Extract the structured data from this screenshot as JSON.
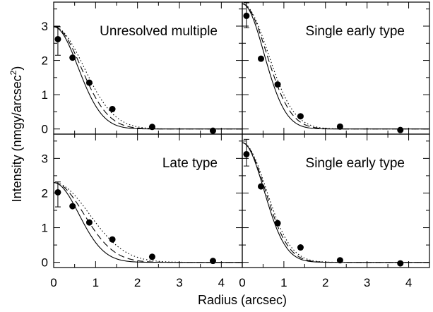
{
  "chart_data": {
    "type": "scatter",
    "xlabel": "Radius (arcsec)",
    "ylabel_main": "Intensity (nmgy/arcsec",
    "ylabel_sup": "2",
    "ylabel_close": ")",
    "xlim": [
      0,
      4.5
    ],
    "ylim": [
      -0.15,
      3.7
    ],
    "xticks": [
      0,
      1,
      2,
      3,
      4
    ],
    "yticks": [
      0,
      1,
      2,
      3
    ],
    "grid": false,
    "panels": [
      {
        "label": "Unresolved multiple",
        "points": [
          [
            0.1,
            2.62
          ],
          [
            0.45,
            2.08
          ],
          [
            0.85,
            1.35
          ],
          [
            1.4,
            0.58
          ],
          [
            2.35,
            0.06
          ],
          [
            3.8,
            -0.05
          ]
        ],
        "errorbar": {
          "x": 0.1,
          "y": 2.62,
          "low": 2.15,
          "high": 2.98
        },
        "peak": 2.98,
        "curves": [
          {
            "style": "solid",
            "sigma": 0.58
          },
          {
            "style": "dashed",
            "sigma": 0.65
          },
          {
            "style": "dotted",
            "sigma": 0.72
          }
        ]
      },
      {
        "label": "Single early type",
        "points": [
          [
            0.1,
            3.3
          ],
          [
            0.45,
            2.05
          ],
          [
            0.85,
            1.3
          ],
          [
            1.4,
            0.37
          ],
          [
            2.35,
            0.07
          ],
          [
            3.8,
            -0.03
          ]
        ],
        "errorbar": {
          "x": 0.1,
          "y": 3.3,
          "low": 2.95,
          "high": 3.68
        },
        "peak": 3.65,
        "curves": [
          {
            "style": "solid",
            "sigma": 0.52
          },
          {
            "style": "dashed",
            "sigma": 0.58
          },
          {
            "style": "dotted",
            "sigma": 0.62
          }
        ]
      },
      {
        "label": "Late type",
        "points": [
          [
            0.1,
            2.02
          ],
          [
            0.45,
            1.62
          ],
          [
            0.85,
            1.15
          ],
          [
            1.4,
            0.66
          ],
          [
            2.35,
            0.16
          ],
          [
            3.8,
            0.04
          ]
        ],
        "errorbar": {
          "x": 0.1,
          "y": 2.02,
          "low": 1.6,
          "high": 2.32
        },
        "peak": 2.3,
        "curves": [
          {
            "style": "solid",
            "sigma": 0.6
          },
          {
            "style": "dashed",
            "sigma": 0.72
          },
          {
            "style": "dotted",
            "sigma": 0.85
          }
        ]
      },
      {
        "label": "Single early type",
        "points": [
          [
            0.1,
            3.12
          ],
          [
            0.45,
            2.19
          ],
          [
            0.85,
            1.13
          ],
          [
            1.4,
            0.43
          ],
          [
            2.35,
            0.06
          ],
          [
            3.8,
            -0.03
          ]
        ],
        "errorbar": {
          "x": 0.1,
          "y": 3.12,
          "low": 2.78,
          "high": 3.55
        },
        "peak": 3.45,
        "curves": [
          {
            "style": "solid",
            "sigma": 0.52
          },
          {
            "style": "dashed",
            "sigma": 0.55
          },
          {
            "style": "dotted",
            "sigma": 0.58
          }
        ]
      }
    ]
  }
}
